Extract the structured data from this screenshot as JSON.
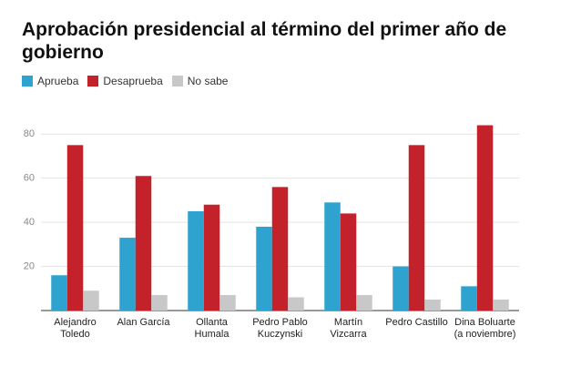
{
  "chart_data": {
    "type": "bar",
    "title": "Aprobación presidencial al término del primer año de gobierno",
    "categories": [
      "Alejandro Toledo",
      "Alan García",
      "Ollanta Humala",
      "Pedro Pablo Kuczynski",
      "Martín Vizcarra",
      "Pedro Castillo",
      "Dina Boluarte (a noviembre)"
    ],
    "series": [
      {
        "name": "Aprueba",
        "color": "#2ea3cf",
        "values": [
          16,
          33,
          45,
          38,
          49,
          20,
          11
        ]
      },
      {
        "name": "Desaprueba",
        "color": "#c3222a",
        "values": [
          75,
          61,
          48,
          56,
          44,
          75,
          84
        ]
      },
      {
        "name": "No sabe",
        "color": "#c8c8c8",
        "values": [
          9,
          7,
          7,
          6,
          7,
          5,
          5
        ]
      }
    ],
    "ylim": [
      0,
      90
    ],
    "yticks": [
      20,
      40,
      60,
      80
    ],
    "grid": true
  }
}
